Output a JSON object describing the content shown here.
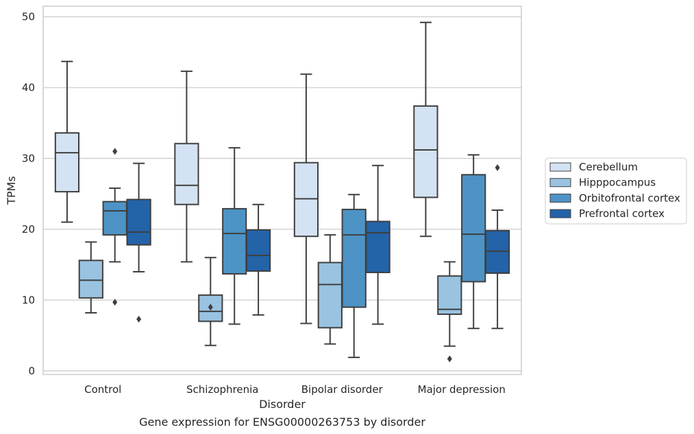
{
  "chart_data": {
    "type": "box",
    "xlabel": "Disorder",
    "ylabel": "TPMs",
    "caption": "Gene expression for ENSG00000263753 by disorder",
    "categories": [
      "Control",
      "Schizophrenia",
      "Bipolar disorder",
      "Major depression"
    ],
    "ylim": [
      -0.5,
      51.5
    ],
    "yticks": [
      "0",
      "10",
      "20",
      "30",
      "40",
      "50"
    ],
    "grid": "horizontal",
    "legend_placement": "right",
    "colors": [
      "#d4e3f3",
      "#99c3e0",
      "#4d93c5",
      "#2363a8"
    ],
    "series": [
      {
        "name": "Cerebellum",
        "boxes": [
          {
            "whislo": 21.0,
            "q1": 25.3,
            "med": 30.8,
            "q3": 33.6,
            "whishi": 43.7,
            "fliers": []
          },
          {
            "whislo": 15.4,
            "q1": 23.5,
            "med": 26.2,
            "q3": 32.1,
            "whishi": 42.3,
            "fliers": []
          },
          {
            "whislo": 6.7,
            "q1": 19.0,
            "med": 24.3,
            "q3": 29.4,
            "whishi": 41.9,
            "fliers": []
          },
          {
            "whislo": 19.0,
            "q1": 24.5,
            "med": 31.2,
            "q3": 37.4,
            "whishi": 49.2,
            "fliers": []
          }
        ]
      },
      {
        "name": "Hipppocampus",
        "boxes": [
          {
            "whislo": 8.2,
            "q1": 10.3,
            "med": 12.8,
            "q3": 15.6,
            "whishi": 18.2,
            "fliers": []
          },
          {
            "whislo": 3.6,
            "q1": 7.0,
            "med": 8.4,
            "q3": 10.7,
            "whishi": 16.0,
            "fliers": [
              9.0
            ]
          },
          {
            "whislo": 3.8,
            "q1": 6.1,
            "med": 12.2,
            "q3": 15.3,
            "whishi": 19.2,
            "fliers": []
          },
          {
            "whislo": 3.5,
            "q1": 8.0,
            "med": 8.7,
            "q3": 13.4,
            "whishi": 15.4,
            "fliers": [
              1.7
            ]
          }
        ]
      },
      {
        "name": "Orbitofrontal cortex",
        "boxes": [
          {
            "whislo": 15.4,
            "q1": 19.2,
            "med": 22.6,
            "q3": 23.9,
            "whishi": 25.8,
            "fliers": [
              31.0,
              9.7
            ]
          },
          {
            "whislo": 6.6,
            "q1": 13.7,
            "med": 19.4,
            "q3": 22.9,
            "whishi": 31.5,
            "fliers": []
          },
          {
            "whislo": 1.9,
            "q1": 9.0,
            "med": 19.2,
            "q3": 22.8,
            "whishi": 24.9,
            "fliers": []
          },
          {
            "whislo": 6.0,
            "q1": 12.6,
            "med": 19.3,
            "q3": 27.7,
            "whishi": 30.5,
            "fliers": []
          }
        ]
      },
      {
        "name": "Prefrontal cortex",
        "boxes": [
          {
            "whislo": 14.0,
            "q1": 17.8,
            "med": 19.6,
            "q3": 24.2,
            "whishi": 29.3,
            "fliers": [
              7.3
            ]
          },
          {
            "whislo": 7.9,
            "q1": 14.1,
            "med": 16.3,
            "q3": 19.9,
            "whishi": 23.5,
            "fliers": []
          },
          {
            "whislo": 6.6,
            "q1": 13.9,
            "med": 19.5,
            "q3": 21.1,
            "whishi": 29.0,
            "fliers": []
          },
          {
            "whislo": 6.0,
            "q1": 13.8,
            "med": 16.9,
            "q3": 19.8,
            "whishi": 22.7,
            "fliers": [
              28.7
            ]
          }
        ]
      }
    ]
  }
}
